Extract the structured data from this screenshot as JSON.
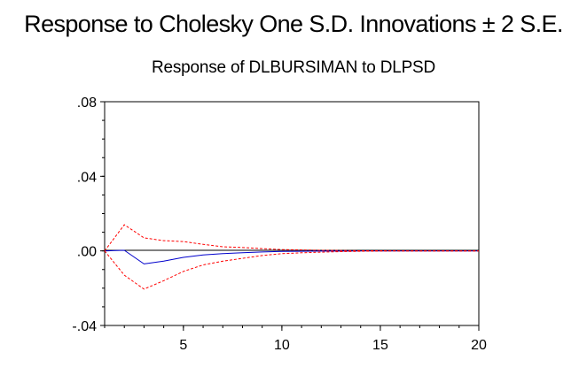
{
  "chart_data": {
    "type": "line",
    "title": "Response to Cholesky One S.D. Innovations ± 2 S.E.",
    "subtitle": "Response of DLBURSIMAN to DLPSD",
    "xlabel": "",
    "ylabel": "",
    "xlim": [
      1,
      20
    ],
    "ylim": [
      -0.04,
      0.08
    ],
    "x_ticks": [
      5,
      10,
      15,
      20
    ],
    "x_tick_labels": [
      "5",
      "10",
      "15",
      "20"
    ],
    "y_ticks": [
      0.08,
      0.04,
      0.0,
      -0.04
    ],
    "y_tick_labels": [
      ".08",
      ".04",
      ".00",
      "-.04"
    ],
    "zero_line": true,
    "grid": false,
    "legend": "none",
    "x": [
      1,
      2,
      3,
      4,
      5,
      6,
      7,
      8,
      9,
      10,
      11,
      12,
      13,
      14,
      15,
      16,
      17,
      18,
      19,
      20
    ],
    "series": [
      {
        "role": "response",
        "color": "#0000cc",
        "dash": "solid",
        "values": [
          0.0,
          0.0003,
          -0.007,
          -0.0055,
          -0.0035,
          -0.0022,
          -0.0015,
          -0.001,
          -0.0006,
          -0.0003,
          -0.0002,
          -0.0001,
          -0.0001,
          0.0,
          0.0,
          0.0,
          0.0,
          0.0,
          0.0,
          0.0
        ]
      },
      {
        "role": "upper band (+2 S.E.)",
        "color": "#ff0000",
        "dash": "dashed",
        "values": [
          0.0,
          0.014,
          0.007,
          0.0055,
          0.005,
          0.0035,
          0.0022,
          0.0018,
          0.0012,
          0.0007,
          0.0005,
          0.0003,
          0.0002,
          0.0001,
          0.0001,
          0.0,
          0.0,
          0.0,
          0.0,
          0.0
        ]
      },
      {
        "role": "lower band (-2 S.E.)",
        "color": "#ff0000",
        "dash": "dashed",
        "values": [
          0.0,
          -0.013,
          -0.0205,
          -0.016,
          -0.011,
          -0.0075,
          -0.0055,
          -0.004,
          -0.0025,
          -0.0015,
          -0.001,
          -0.0007,
          -0.0004,
          -0.0002,
          -0.0001,
          0.0,
          0.0,
          0.0,
          0.0,
          0.0
        ]
      }
    ]
  }
}
